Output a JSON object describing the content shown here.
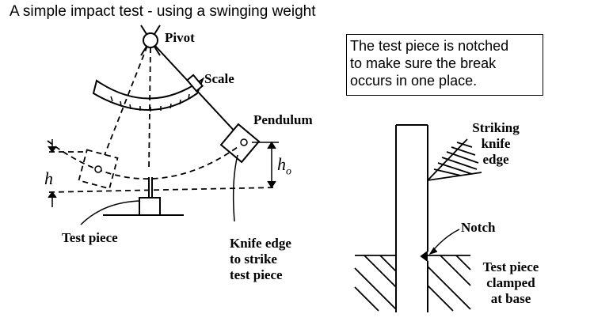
{
  "title": "A simple impact test - using a swinging weight",
  "note": {
    "lines": [
      "The test piece is notched",
      "to make sure the break",
      "occurs in one place."
    ]
  },
  "labels": {
    "pivot": "Pivot",
    "scale": "Scale",
    "pendulum": "Pendulum",
    "test_piece": "Test piece",
    "knife_edge": [
      "Knife edge",
      "to strike",
      "test piece"
    ],
    "h": "h",
    "h0_main": "h",
    "h0_sub": "o",
    "striking": [
      "Striking",
      "knife",
      "edge"
    ],
    "notch": "Notch",
    "clamped": [
      "Test piece",
      "clamped",
      "at base"
    ]
  },
  "colors": {
    "ink": "#000000",
    "background": "#ffffff"
  }
}
